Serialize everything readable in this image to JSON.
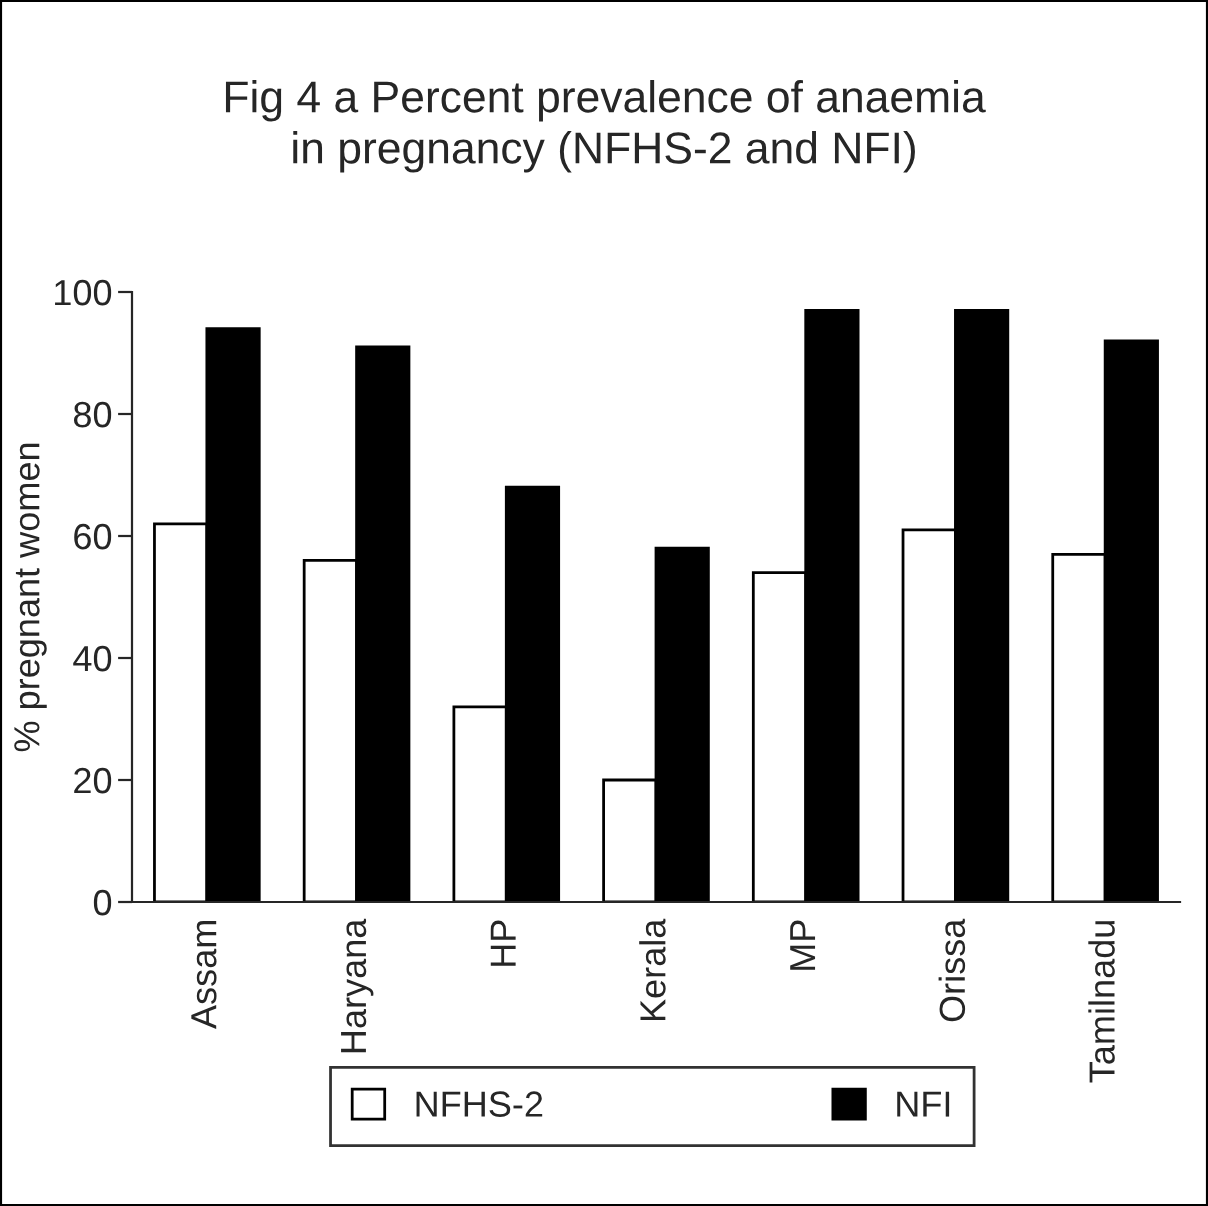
{
  "chart_data": {
    "type": "bar",
    "title": "Fig 4 a Percent prevalence of anaemia\nin pregnancy (NFHS-2 and NFI)",
    "ylabel": "% pregnant women",
    "categories": [
      "Assam",
      "Haryana",
      "HP",
      "Kerala",
      "MP",
      "Orissa",
      "Tamilnadu"
    ],
    "series": [
      {
        "name": "NFHS-2",
        "color": "#ffffff",
        "values": [
          62,
          56,
          32,
          20,
          54,
          61,
          57
        ]
      },
      {
        "name": "NFI",
        "color": "#000000",
        "values": [
          94,
          91,
          68,
          58,
          97,
          97,
          92
        ]
      }
    ],
    "ylim": [
      0,
      100
    ],
    "yticks": [
      0,
      20,
      40,
      60,
      80,
      100
    ],
    "grid": false,
    "legend": "bottom"
  }
}
